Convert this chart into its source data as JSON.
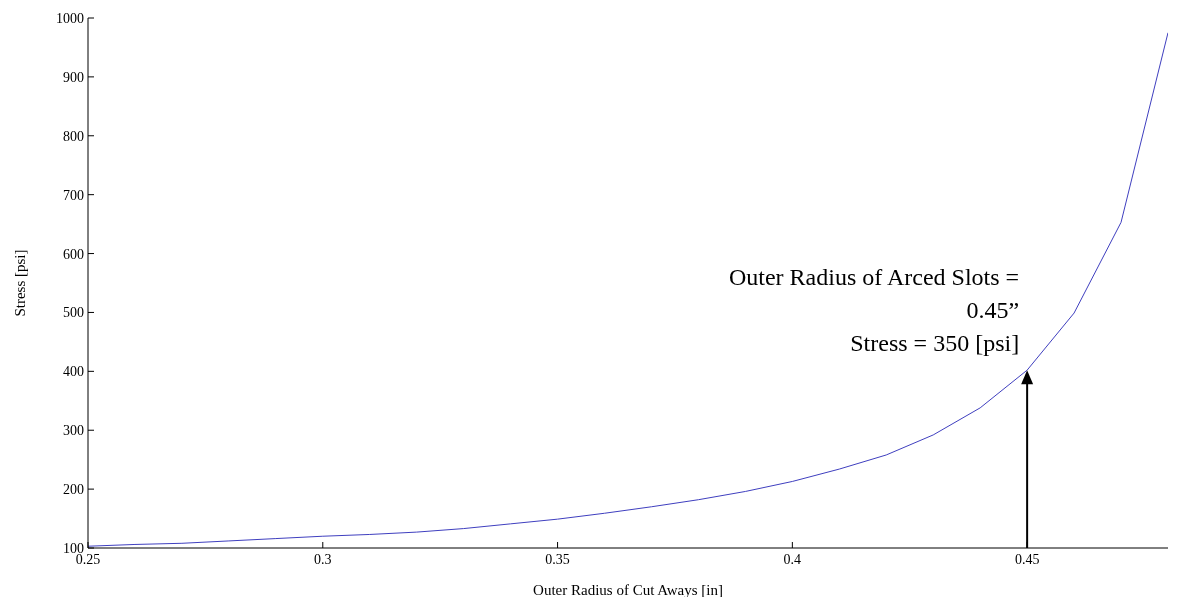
{
  "chart_data": {
    "type": "line",
    "xlabel": "Outer Radius of Cut Aways [in]",
    "ylabel": "Stress [psi]",
    "x": [
      0.25,
      0.26,
      0.27,
      0.28,
      0.29,
      0.3,
      0.31,
      0.32,
      0.33,
      0.34,
      0.35,
      0.36,
      0.37,
      0.38,
      0.39,
      0.4,
      0.41,
      0.42,
      0.43,
      0.44,
      0.45,
      0.46,
      0.47,
      0.48
    ],
    "series": [
      {
        "color": "#3f3fbf",
        "values": [
          103,
          106,
          108,
          112,
          116,
          120,
          123,
          127,
          133,
          141,
          149,
          159,
          170,
          182,
          196,
          213,
          234,
          258,
          292,
          338,
          402,
          499,
          653,
          975
        ]
      }
    ],
    "xlim": [
      0.25,
      0.48
    ],
    "xticks": [
      0.25,
      0.3,
      0.35,
      0.4,
      0.45
    ],
    "ylim": [
      100,
      1000
    ],
    "yticks": [
      100,
      200,
      300,
      400,
      500,
      600,
      700,
      800,
      900,
      1000
    ],
    "grid": false,
    "legend": false,
    "marker": "none",
    "line_style": "solid",
    "annotations": [
      {
        "text": "Outer Radius of Arced Slots =\n0.45”\nStress = 350 [psi]",
        "x": 0.45,
        "y": 402
      }
    ]
  }
}
